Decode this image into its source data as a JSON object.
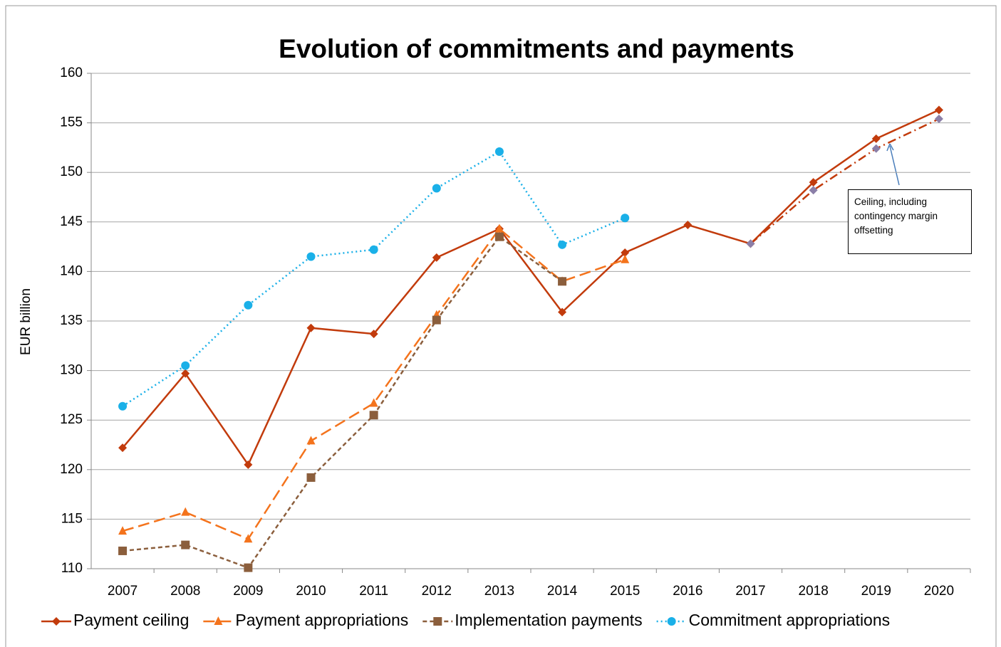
{
  "chart_data": {
    "type": "line",
    "title": "Evolution of commitments and payments",
    "y_label": "EUR billion",
    "categories": [
      "2007",
      "2008",
      "2009",
      "2010",
      "2011",
      "2012",
      "2013",
      "2014",
      "2015",
      "2016",
      "2017",
      "2018",
      "2019",
      "2020"
    ],
    "ylim": [
      110,
      160
    ],
    "yticks": [
      110,
      115,
      120,
      125,
      130,
      135,
      140,
      145,
      150,
      155,
      160
    ],
    "grid": true,
    "series": [
      {
        "name": "Payment ceiling",
        "color": "#c23b0c",
        "marker": "diamond",
        "dash": "solid",
        "values": [
          122.2,
          129.7,
          120.5,
          134.3,
          133.7,
          141.4,
          144.3,
          135.9,
          141.9,
          144.7,
          142.8,
          149.0,
          153.4,
          156.3
        ]
      },
      {
        "name": "Payment appropriations",
        "color": "#f4731c",
        "marker": "triangle",
        "dash": "long",
        "values": [
          113.8,
          115.7,
          113.0,
          122.9,
          126.7,
          135.6,
          144.3,
          139.0,
          141.2,
          null,
          null,
          null,
          null,
          null
        ]
      },
      {
        "name": "Implementation payments",
        "color": "#8b5e3c",
        "marker": "square",
        "dash": "short",
        "values": [
          111.8,
          112.4,
          110.1,
          119.2,
          125.5,
          135.1,
          143.5,
          139.0,
          null,
          null,
          null,
          null,
          null,
          null
        ]
      },
      {
        "name": "Commitment appropriations",
        "color": "#1ab0e8",
        "marker": "circle",
        "dash": "dot",
        "values": [
          126.4,
          130.5,
          136.6,
          141.5,
          142.2,
          148.4,
          152.1,
          142.7,
          145.4,
          null,
          null,
          null,
          null,
          null
        ]
      },
      {
        "name": "Ceiling, including contingency margin offsetting",
        "color": "#c23b0c",
        "marker_color": "#8b7fa8",
        "marker": "diamond",
        "dash": "dashdot",
        "legend": false,
        "values": [
          null,
          null,
          null,
          null,
          null,
          null,
          null,
          null,
          null,
          null,
          142.8,
          148.2,
          152.4,
          155.4
        ]
      }
    ]
  }
}
